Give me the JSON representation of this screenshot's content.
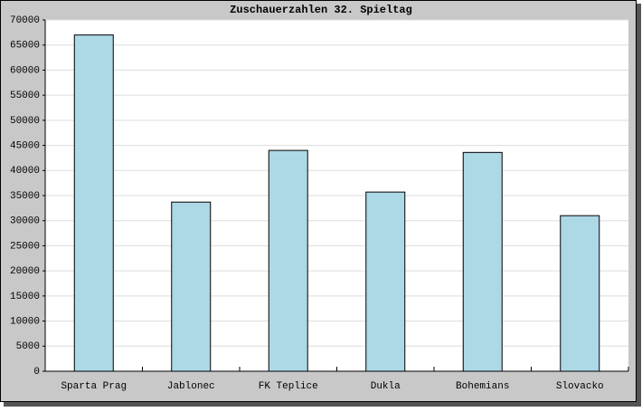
{
  "chart_data": {
    "type": "bar",
    "title": "Zuschauerzahlen 32. Spieltag",
    "categories": [
      "Sparta Prag",
      "Jablonec",
      "FK Teplice",
      "Dukla",
      "Bohemians",
      "Slovacko"
    ],
    "values": [
      67000,
      33700,
      44000,
      35700,
      43600,
      31000
    ],
    "color": "#add8e6",
    "ylim": [
      0,
      70000
    ],
    "yticks": [
      0,
      5000,
      10000,
      15000,
      20000,
      25000,
      30000,
      35000,
      40000,
      45000,
      50000,
      55000,
      60000,
      65000,
      70000
    ],
    "grid": true
  }
}
